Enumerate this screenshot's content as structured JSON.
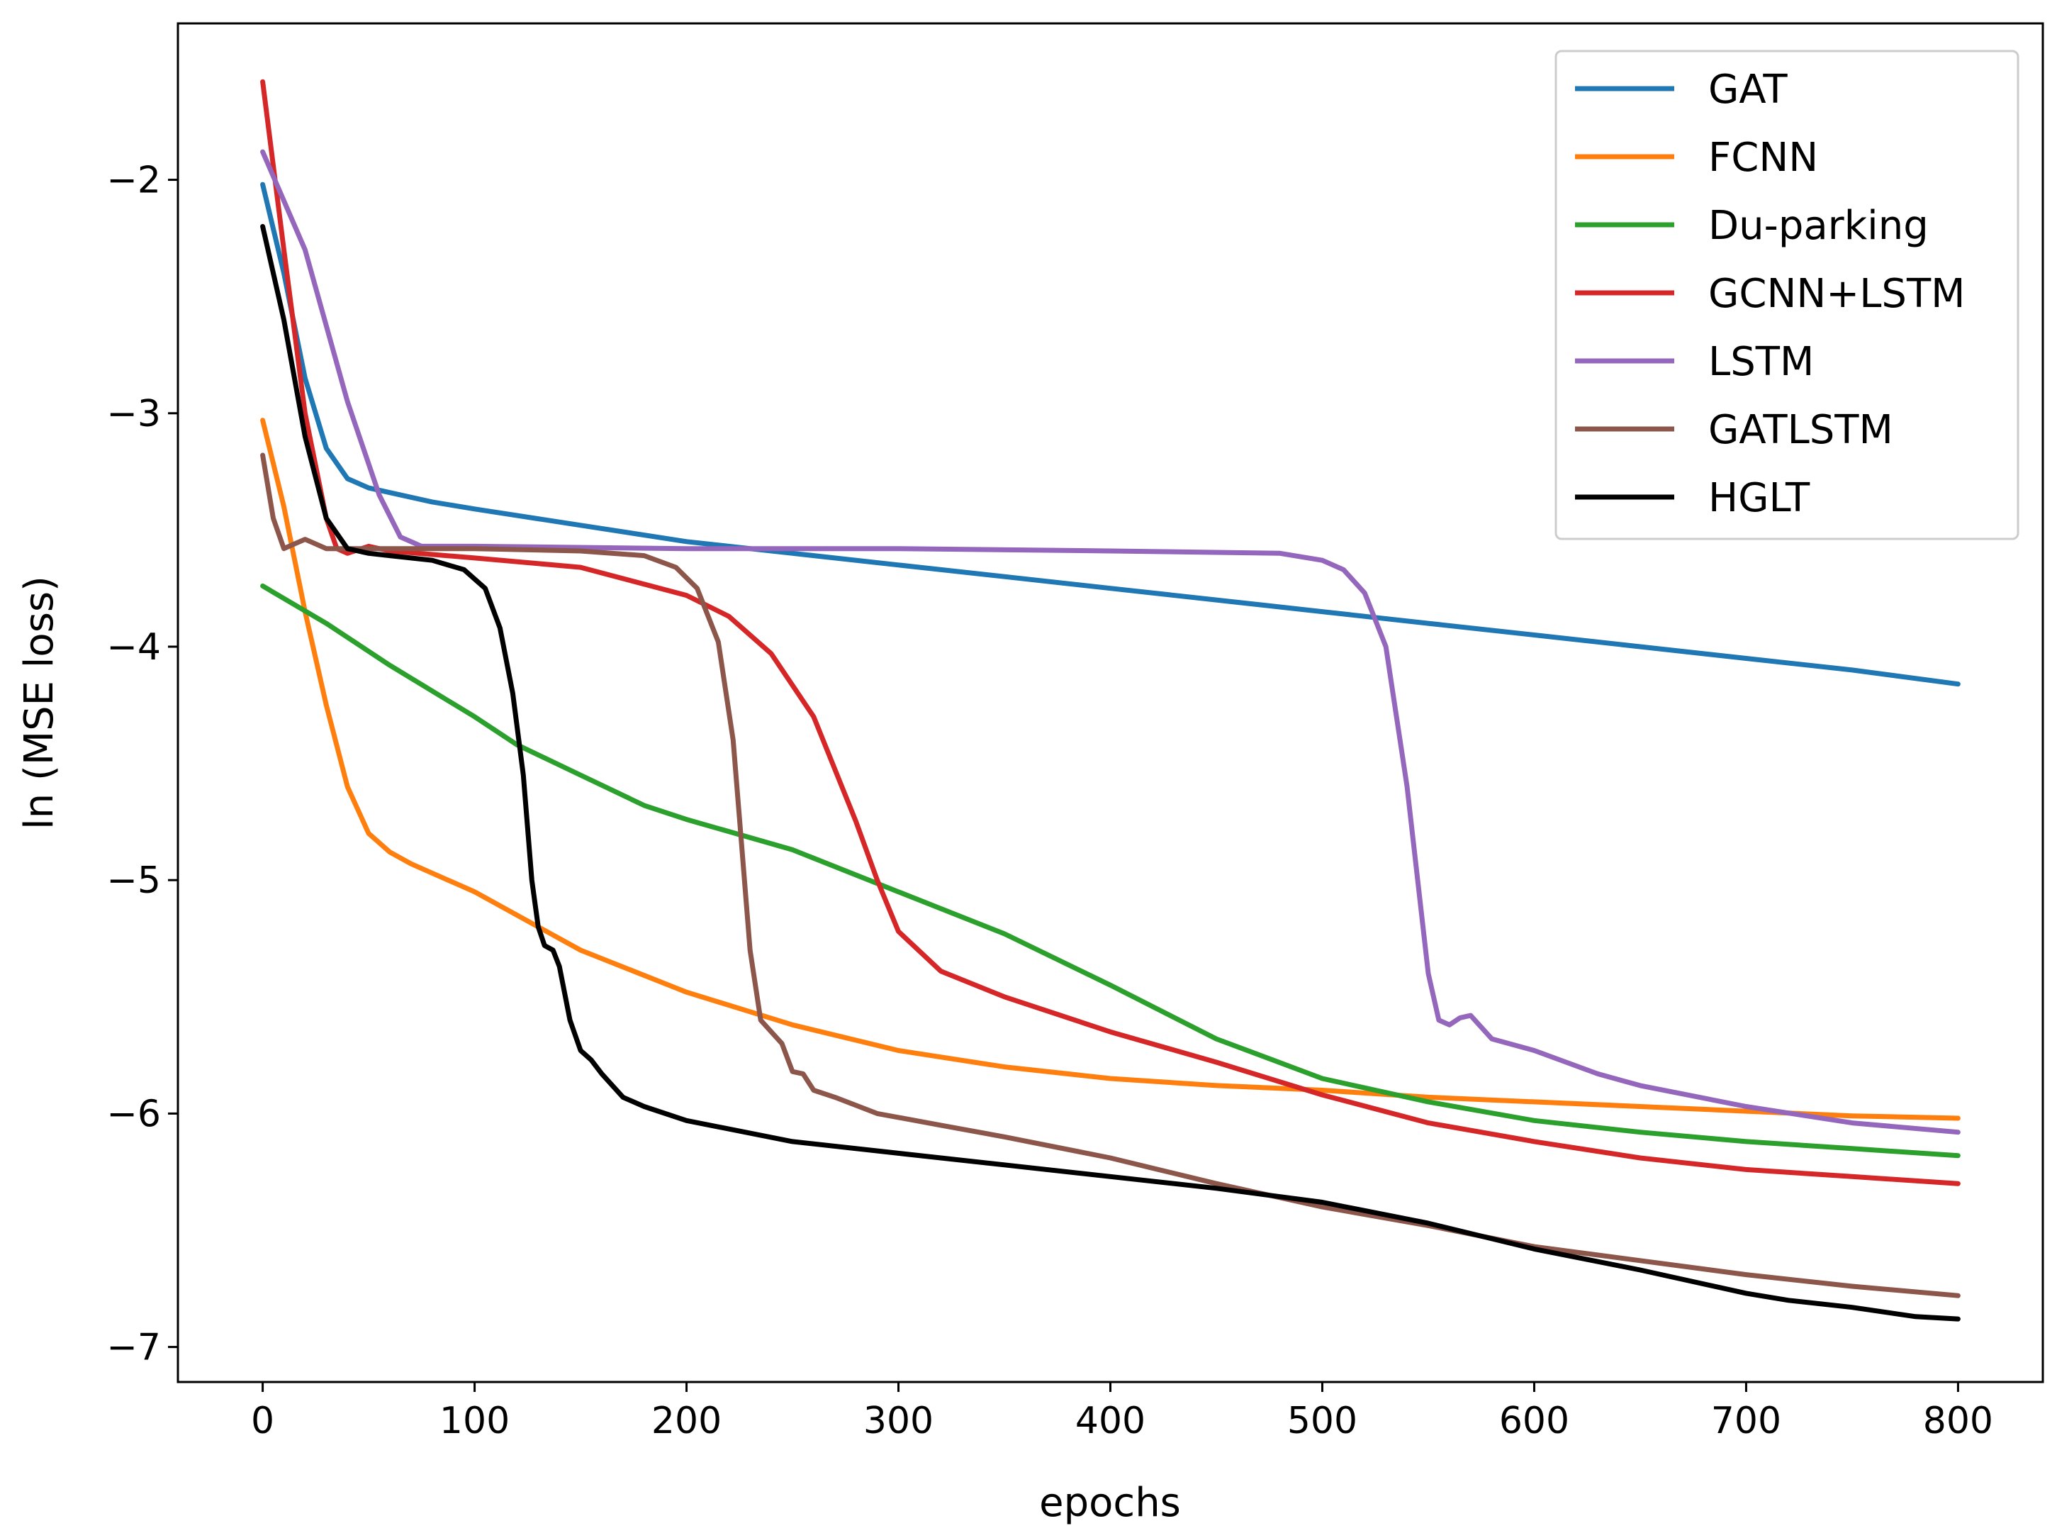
{
  "chart_data": {
    "type": "line",
    "title": "",
    "xlabel": "epochs",
    "ylabel": "ln (MSE loss)",
    "xlim": [
      -40,
      840
    ],
    "ylim": [
      -7.15,
      -1.33
    ],
    "xticks": [
      0,
      100,
      200,
      300,
      400,
      500,
      600,
      700,
      800
    ],
    "xtick_labels": [
      "0",
      "100",
      "200",
      "300",
      "400",
      "500",
      "600",
      "700",
      "800"
    ],
    "yticks": [
      -7,
      -6,
      -5,
      -4,
      -3,
      -2
    ],
    "ytick_labels": [
      "−7",
      "−6",
      "−5",
      "−4",
      "−3",
      "−2"
    ],
    "grid": false,
    "legend_position": "top-right",
    "series": [
      {
        "name": "GAT",
        "color": "#1f77b4",
        "points": [
          [
            0,
            -2.02
          ],
          [
            10,
            -2.4
          ],
          [
            20,
            -2.85
          ],
          [
            30,
            -3.15
          ],
          [
            40,
            -3.28
          ],
          [
            50,
            -3.32
          ],
          [
            60,
            -3.34
          ],
          [
            80,
            -3.38
          ],
          [
            100,
            -3.41
          ],
          [
            150,
            -3.48
          ],
          [
            200,
            -3.55
          ],
          [
            250,
            -3.6
          ],
          [
            300,
            -3.65
          ],
          [
            350,
            -3.7
          ],
          [
            400,
            -3.75
          ],
          [
            450,
            -3.8
          ],
          [
            500,
            -3.85
          ],
          [
            550,
            -3.9
          ],
          [
            600,
            -3.95
          ],
          [
            650,
            -4.0
          ],
          [
            700,
            -4.05
          ],
          [
            750,
            -4.1
          ],
          [
            800,
            -4.16
          ]
        ]
      },
      {
        "name": "FCNN",
        "color": "#ff7f0e",
        "points": [
          [
            0,
            -3.03
          ],
          [
            10,
            -3.4
          ],
          [
            20,
            -3.85
          ],
          [
            30,
            -4.25
          ],
          [
            40,
            -4.6
          ],
          [
            50,
            -4.8
          ],
          [
            60,
            -4.88
          ],
          [
            70,
            -4.93
          ],
          [
            100,
            -5.05
          ],
          [
            150,
            -5.3
          ],
          [
            200,
            -5.48
          ],
          [
            250,
            -5.62
          ],
          [
            300,
            -5.73
          ],
          [
            350,
            -5.8
          ],
          [
            400,
            -5.85
          ],
          [
            450,
            -5.88
          ],
          [
            500,
            -5.9
          ],
          [
            550,
            -5.93
          ],
          [
            600,
            -5.95
          ],
          [
            650,
            -5.97
          ],
          [
            700,
            -5.99
          ],
          [
            750,
            -6.01
          ],
          [
            800,
            -6.02
          ]
        ]
      },
      {
        "name": "Du-parking",
        "color": "#2ca02c",
        "points": [
          [
            0,
            -3.74
          ],
          [
            30,
            -3.9
          ],
          [
            60,
            -4.08
          ],
          [
            100,
            -4.3
          ],
          [
            120,
            -4.42
          ],
          [
            150,
            -4.55
          ],
          [
            180,
            -4.68
          ],
          [
            200,
            -4.74
          ],
          [
            250,
            -4.87
          ],
          [
            300,
            -5.05
          ],
          [
            350,
            -5.23
          ],
          [
            400,
            -5.45
          ],
          [
            450,
            -5.68
          ],
          [
            500,
            -5.85
          ],
          [
            550,
            -5.95
          ],
          [
            600,
            -6.03
          ],
          [
            650,
            -6.08
          ],
          [
            700,
            -6.12
          ],
          [
            750,
            -6.15
          ],
          [
            800,
            -6.18
          ]
        ]
      },
      {
        "name": "GCNN+LSTM",
        "color": "#d62728",
        "points": [
          [
            0,
            -1.58
          ],
          [
            10,
            -2.3
          ],
          [
            20,
            -3.0
          ],
          [
            30,
            -3.45
          ],
          [
            35,
            -3.58
          ],
          [
            40,
            -3.6
          ],
          [
            50,
            -3.57
          ],
          [
            60,
            -3.59
          ],
          [
            100,
            -3.62
          ],
          [
            150,
            -3.66
          ],
          [
            200,
            -3.78
          ],
          [
            220,
            -3.87
          ],
          [
            240,
            -4.03
          ],
          [
            260,
            -4.3
          ],
          [
            280,
            -4.75
          ],
          [
            290,
            -5.0
          ],
          [
            300,
            -5.22
          ],
          [
            320,
            -5.39
          ],
          [
            350,
            -5.5
          ],
          [
            400,
            -5.65
          ],
          [
            450,
            -5.78
          ],
          [
            500,
            -5.92
          ],
          [
            550,
            -6.04
          ],
          [
            600,
            -6.12
          ],
          [
            650,
            -6.19
          ],
          [
            700,
            -6.24
          ],
          [
            750,
            -6.27
          ],
          [
            800,
            -6.3
          ]
        ]
      },
      {
        "name": "LSTM",
        "color": "#9467bd",
        "points": [
          [
            0,
            -1.88
          ],
          [
            20,
            -2.3
          ],
          [
            40,
            -2.95
          ],
          [
            55,
            -3.35
          ],
          [
            65,
            -3.53
          ],
          [
            75,
            -3.57
          ],
          [
            100,
            -3.57
          ],
          [
            200,
            -3.58
          ],
          [
            300,
            -3.58
          ],
          [
            400,
            -3.59
          ],
          [
            480,
            -3.6
          ],
          [
            500,
            -3.63
          ],
          [
            510,
            -3.67
          ],
          [
            520,
            -3.77
          ],
          [
            530,
            -4.0
          ],
          [
            540,
            -4.6
          ],
          [
            550,
            -5.4
          ],
          [
            555,
            -5.6
          ],
          [
            560,
            -5.62
          ],
          [
            565,
            -5.59
          ],
          [
            570,
            -5.58
          ],
          [
            580,
            -5.68
          ],
          [
            600,
            -5.73
          ],
          [
            630,
            -5.83
          ],
          [
            650,
            -5.88
          ],
          [
            700,
            -5.97
          ],
          [
            750,
            -6.04
          ],
          [
            800,
            -6.08
          ]
        ]
      },
      {
        "name": "GATLSTM",
        "color": "#8c564b",
        "points": [
          [
            0,
            -3.18
          ],
          [
            5,
            -3.45
          ],
          [
            10,
            -3.58
          ],
          [
            15,
            -3.56
          ],
          [
            20,
            -3.54
          ],
          [
            25,
            -3.56
          ],
          [
            30,
            -3.58
          ],
          [
            40,
            -3.58
          ],
          [
            60,
            -3.58
          ],
          [
            100,
            -3.58
          ],
          [
            150,
            -3.59
          ],
          [
            180,
            -3.61
          ],
          [
            195,
            -3.66
          ],
          [
            205,
            -3.75
          ],
          [
            215,
            -3.98
          ],
          [
            222,
            -4.4
          ],
          [
            226,
            -4.85
          ],
          [
            230,
            -5.3
          ],
          [
            235,
            -5.6
          ],
          [
            240,
            -5.65
          ],
          [
            245,
            -5.7
          ],
          [
            250,
            -5.82
          ],
          [
            255,
            -5.83
          ],
          [
            260,
            -5.9
          ],
          [
            270,
            -5.93
          ],
          [
            290,
            -6.0
          ],
          [
            320,
            -6.05
          ],
          [
            350,
            -6.1
          ],
          [
            400,
            -6.19
          ],
          [
            450,
            -6.3
          ],
          [
            500,
            -6.4
          ],
          [
            550,
            -6.48
          ],
          [
            600,
            -6.57
          ],
          [
            650,
            -6.63
          ],
          [
            700,
            -6.69
          ],
          [
            750,
            -6.74
          ],
          [
            800,
            -6.78
          ]
        ]
      },
      {
        "name": "HGLT",
        "color": "#000000",
        "points": [
          [
            0,
            -2.2
          ],
          [
            10,
            -2.6
          ],
          [
            20,
            -3.1
          ],
          [
            30,
            -3.45
          ],
          [
            40,
            -3.58
          ],
          [
            50,
            -3.6
          ],
          [
            60,
            -3.61
          ],
          [
            80,
            -3.63
          ],
          [
            95,
            -3.67
          ],
          [
            105,
            -3.75
          ],
          [
            112,
            -3.92
          ],
          [
            118,
            -4.2
          ],
          [
            123,
            -4.55
          ],
          [
            127,
            -5.0
          ],
          [
            130,
            -5.2
          ],
          [
            133,
            -5.28
          ],
          [
            137,
            -5.3
          ],
          [
            140,
            -5.37
          ],
          [
            145,
            -5.6
          ],
          [
            150,
            -5.73
          ],
          [
            155,
            -5.77
          ],
          [
            160,
            -5.83
          ],
          [
            170,
            -5.93
          ],
          [
            180,
            -5.97
          ],
          [
            200,
            -6.03
          ],
          [
            250,
            -6.12
          ],
          [
            300,
            -6.17
          ],
          [
            350,
            -6.22
          ],
          [
            400,
            -6.27
          ],
          [
            450,
            -6.32
          ],
          [
            500,
            -6.38
          ],
          [
            550,
            -6.47
          ],
          [
            600,
            -6.58
          ],
          [
            650,
            -6.67
          ],
          [
            700,
            -6.77
          ],
          [
            720,
            -6.8
          ],
          [
            750,
            -6.83
          ],
          [
            780,
            -6.87
          ],
          [
            800,
            -6.88
          ]
        ]
      }
    ]
  }
}
